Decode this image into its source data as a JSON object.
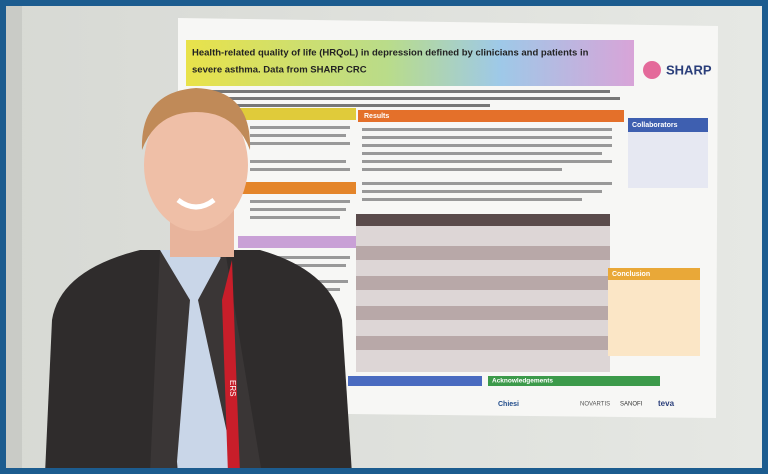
{
  "poster": {
    "title_lines": [
      "Health-related quality of life (HRQoL) in depression defined by clinicians and patients in",
      "severe asthma. Data from SHARP CRC"
    ],
    "logo": "SHARP",
    "sections": {
      "results": "Results",
      "collaborators": "Collaborators",
      "conclusion": "Conclusion",
      "acknowledgements": "Acknowledgements"
    },
    "sponsors": [
      "Chiesi",
      "NOVARTIS",
      "SANOFI",
      "teva"
    ]
  },
  "lanyard": "ERS"
}
